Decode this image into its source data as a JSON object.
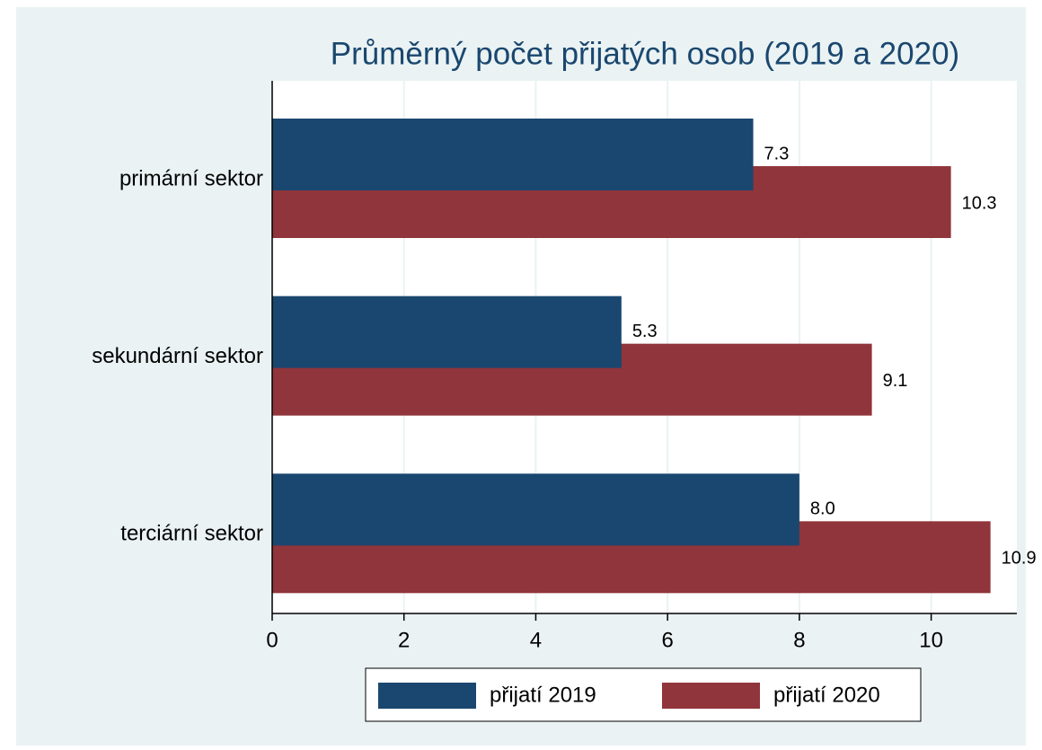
{
  "chart_data": {
    "type": "hbar",
    "title": "Průměrný počet přijatých osob (2019 a 2020)",
    "categories": [
      "primární sektor",
      "sekundární sektor",
      "terciární sektor"
    ],
    "series": [
      {
        "name": "přijatí 2019",
        "color": "#1a476f",
        "values": [
          7.3,
          5.3,
          8
        ],
        "value_labels": [
          "7.3",
          "5.3",
          "8.0"
        ]
      },
      {
        "name": "přijatí 2020",
        "color": "#90353b",
        "values": [
          10.3,
          9.1,
          10.9
        ],
        "value_labels": [
          "10.3",
          "9.1",
          "10.9"
        ]
      }
    ],
    "xlim": [
      0,
      11.3
    ],
    "xticks": [
      0,
      2,
      4,
      6,
      8,
      10
    ],
    "grid": true,
    "legend": "bottom"
  }
}
